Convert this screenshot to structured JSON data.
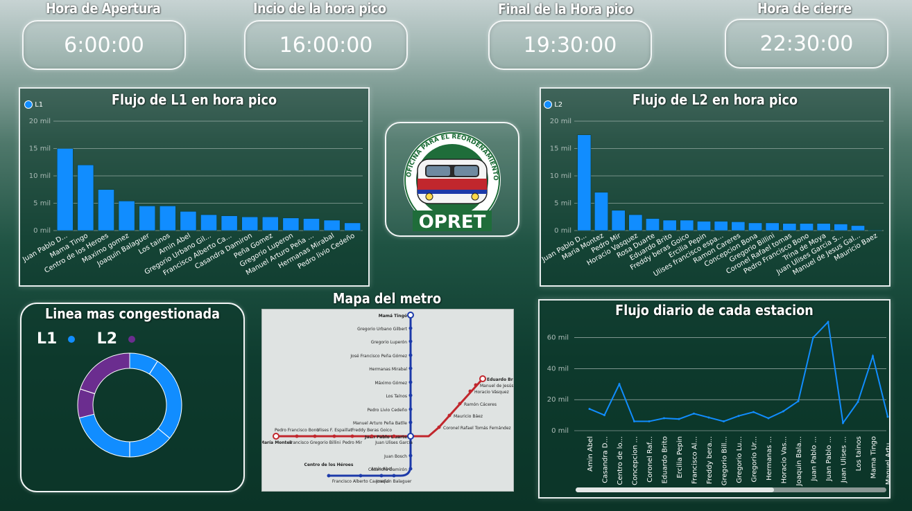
{
  "kpis": [
    {
      "label": "Hora de Apertura",
      "value": "6:00:00"
    },
    {
      "label": "Incio de la hora pico",
      "value": "16:00:00"
    },
    {
      "label": "Final de la Hora pico",
      "value": "19:30:00"
    },
    {
      "label": "Hora de cierre",
      "value": "22:30:00"
    }
  ],
  "logo": {
    "text": "OPRET",
    "ring_text": "OFICINA PARA EL REORDENAMIENTO DEL TRANSPORTE"
  },
  "colors": {
    "bar": "#118dff",
    "l2": "#6b2d8f",
    "line_red": "#c1272d",
    "line_blue": "#1c3aa9"
  },
  "chart_data": [
    {
      "type": "bar",
      "title": "Flujo de L1 en hora pico",
      "legend": [
        "L1"
      ],
      "legend_position": "top-left",
      "yticks": [
        "0 mil",
        "5 mil",
        "10 mil",
        "15 mil",
        "20 mil"
      ],
      "ylim": [
        0,
        20000
      ],
      "grid": true,
      "categories": [
        "Juan Pablo D...",
        "Mama Tingo",
        "Centro de los Heroes",
        "Maximo gomez",
        "Joaquin Balaguer",
        "Los tainos",
        "Amin Abel",
        "Gregorio Urbano Gil...",
        "Francisco Alberto Ca...",
        "Casandra Damiron",
        "Peña Gomez",
        "Gregorio Luperon",
        "Manuel Arturo Peña ...",
        "Hermanas Mirabal",
        "Pedro livio Cedeño"
      ],
      "values": [
        15000,
        12000,
        7500,
        5400,
        4500,
        4500,
        3500,
        2900,
        2700,
        2500,
        2500,
        2300,
        2200,
        1900,
        1400
      ]
    },
    {
      "type": "bar",
      "title": "Flujo de L2 en hora pico",
      "legend": [
        "L2"
      ],
      "legend_position": "top-left",
      "yticks": [
        "0 mil",
        "5 mil",
        "10 mil",
        "15 mil",
        "20 mil"
      ],
      "ylim": [
        0,
        20000
      ],
      "grid": true,
      "categories": [
        "Juan Pablo D...",
        "Maria Montez",
        "Pedro Mir",
        "Horacio Vasquez",
        "Rosa Duarte",
        "Eduardo Brito",
        "Freddy beras Goico",
        "Ercilia Pepin",
        "Ulises francisco espa...",
        "Ramon Careres",
        "Concepcion Bona",
        "Gregorio Billini",
        "Coronel Rafael tomas",
        "Pedro Francisco Bono",
        "Trina de Moya",
        "Juan Ulises Garcia S...",
        "Manuel de Jesus Gal...",
        "Mauricio Baez"
      ],
      "values": [
        17500,
        7000,
        3700,
        2900,
        2200,
        1900,
        1900,
        1700,
        1700,
        1600,
        1400,
        1400,
        1300,
        1300,
        1300,
        1200,
        900,
        100
      ]
    },
    {
      "type": "pie",
      "title": "Linea mas congestionada",
      "legend": [
        "L1",
        "L2"
      ],
      "legend_colors": [
        "#118dff",
        "#6b2d8f"
      ],
      "values": [
        71,
        29
      ]
    },
    {
      "type": "line",
      "title": "Flujo diario de cada estacion",
      "yticks": [
        "0 mil",
        "20 mil",
        "40 mil",
        "60 mil"
      ],
      "ylim": [
        0,
        66000
      ],
      "grid": true,
      "categories": [
        "Amin Abel",
        "Casandra D...",
        "Centro de lo...",
        "Concepcion ...",
        "Coronel Raf...",
        "Eduardo Brito",
        "Ercilia Pepin",
        "Francisco Al...",
        "Freddy bera...",
        "Gregorio Bill...",
        "Gregorio Lu...",
        "Gregorio Ur...",
        "Hermanas ...",
        "Horacio Vas...",
        "Joaquin Bala...",
        "Juan Pablo ...",
        "Juan Pablo ...",
        "Juan Ulises ...",
        "Los tainos",
        "Mama Tingo",
        "Manuel Artu..."
      ],
      "values": [
        14000,
        10000,
        30000,
        6000,
        6000,
        8000,
        7500,
        11000,
        8500,
        6000,
        9500,
        12000,
        8000,
        12500,
        19000,
        60000,
        70000,
        5000,
        18500,
        48000,
        9000
      ]
    }
  ],
  "map": {
    "title": "Mapa del metro",
    "blue_stations": [
      "Mamá Tingó",
      "Gregorio Urbano Gilbert",
      "Gregorio Luperón",
      "José Francisco Peña Gómez",
      "Hermanas Mirabal",
      "Máximo Gómez",
      "Los Taínos",
      "Pedro Livio Cedeño",
      "Manuel Arturo Peña Batlle",
      "Juan Pablo Duarte",
      "Juan Bosch",
      "Casandra Damirón",
      "Joaquín Balaguer",
      "Amín Abel",
      "Francisco Alberto Caamaño",
      "Centro de los Héroes"
    ],
    "red_stations": [
      "María Montez",
      "Pedro Francisco Bono",
      "Francisco Gregorio Billini",
      "Ulises F. Espaillat",
      "Pedro Mir",
      "Freddy Beras Goico",
      "Juan Ulises García",
      "Coronel Rafael Tomás Fernández",
      "Mauricio Báez",
      "Ramón Cáceres",
      "Horacio Vásquez",
      "Manuel de Jesús Abreu Galván",
      "Eduardo Brito"
    ]
  }
}
